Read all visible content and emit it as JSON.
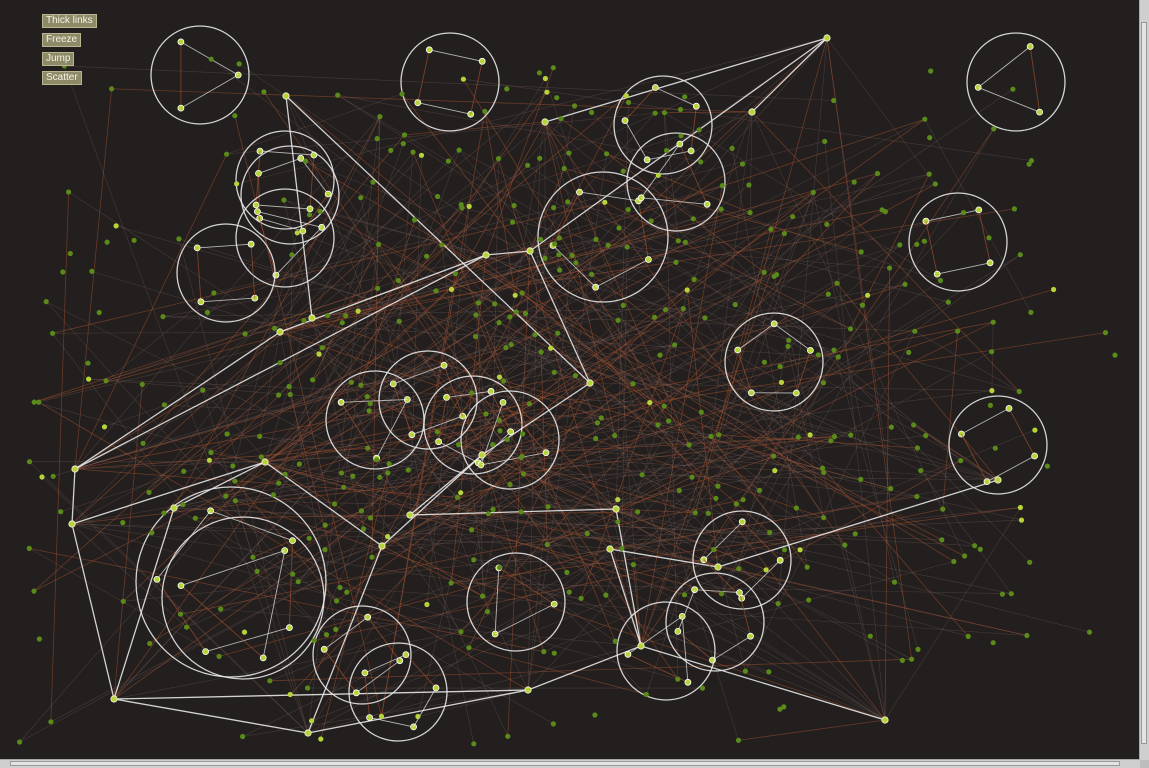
{
  "controls": {
    "thick_links": "Thick links",
    "freeze": "Freeze",
    "jump": "Jump",
    "scatter": "Scatter"
  },
  "colors": {
    "background": "#221f1e",
    "node": "#5a8a1a",
    "node_highlight": "#b6d43a",
    "cluster_ring": "#e8e8e8",
    "link_faint": "#8a6c66",
    "link_red": "#a3502f",
    "link_bright": "#f2f2f2"
  },
  "icons": {
    "node": "circle-dot-icon",
    "cluster": "ring-icon"
  }
}
